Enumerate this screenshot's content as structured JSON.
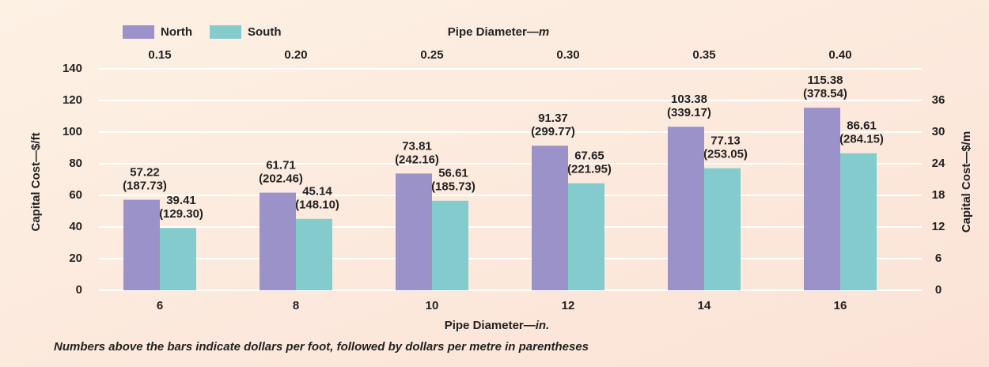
{
  "chart_data": {
    "type": "bar",
    "categories": [
      "6",
      "8",
      "10",
      "12",
      "14",
      "16"
    ],
    "top_categories": [
      "0.15",
      "0.20",
      "0.25",
      "0.30",
      "0.35",
      "0.40"
    ],
    "top_axis_label": "Pipe Diameter—",
    "top_axis_unit": "m",
    "xlabel": "Pipe Diameter—",
    "xlabel_unit": "in.",
    "ylabel": "Capital Cost—$/ft",
    "y2label": "Capital Cost—$/m",
    "note": "Numbers above the bars indicate dollars per foot, followed by dollars per metre in parentheses",
    "series": [
      {
        "name": "North",
        "color": "#9a92c8",
        "values": [
          57.22,
          61.71,
          73.81,
          91.37,
          103.38,
          115.38
        ],
        "metre_labels": [
          "(187.73)",
          "(202.46)",
          "(242.16)",
          "(299.77)",
          "(339.17)",
          "(378.54)"
        ]
      },
      {
        "name": "South",
        "color": "#84cbcd",
        "values": [
          39.41,
          45.14,
          56.61,
          67.65,
          77.13,
          86.61
        ],
        "metre_labels": [
          "(129.30)",
          "(148.10)",
          "(185.73)",
          "(221.95)",
          "(253.05)",
          "(284.15)"
        ]
      }
    ],
    "ylim": [
      0,
      140
    ],
    "yticks": [
      0,
      20,
      40,
      60,
      80,
      100,
      120,
      140
    ],
    "y2lim": [
      0,
      42
    ],
    "y2ticks": [
      0,
      6,
      12,
      18,
      24,
      30,
      36
    ],
    "grid": true
  }
}
